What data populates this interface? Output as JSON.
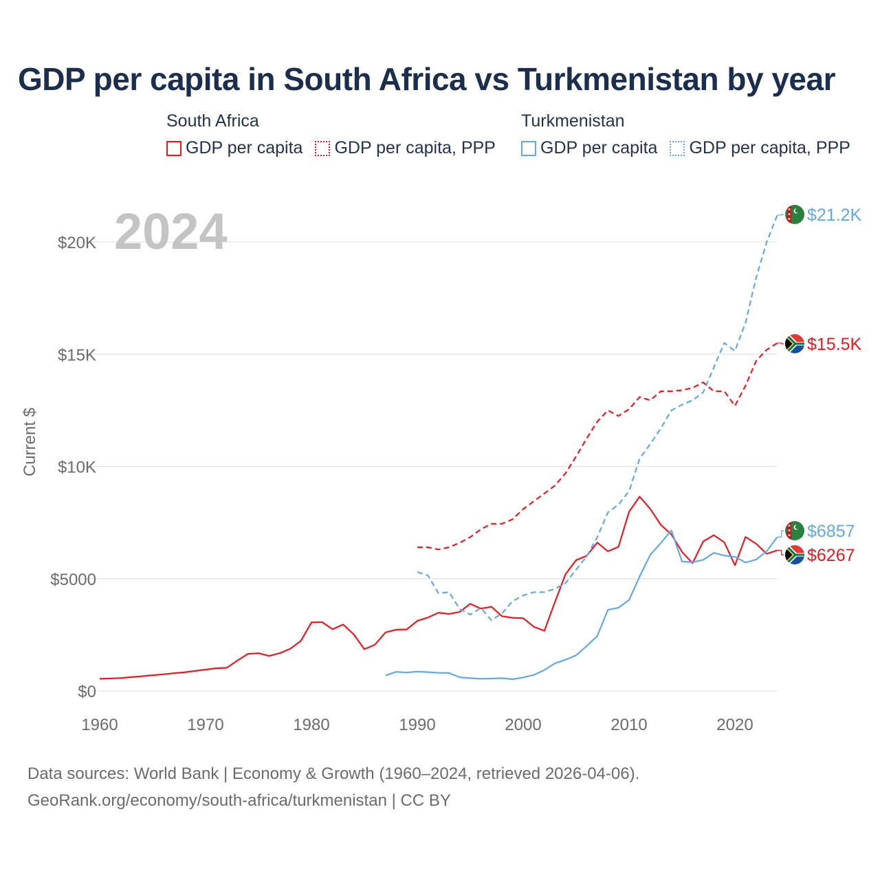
{
  "title": "GDP per capita in South Africa vs Turkmenistan by year",
  "legend": {
    "groups": [
      {
        "country": "South Africa",
        "items": [
          {
            "label": "GDP per capita",
            "style": "solid",
            "color": "#e8191f"
          },
          {
            "label": "GDP per capita, PPP",
            "style": "dotted",
            "color": "#e8191f"
          }
        ]
      },
      {
        "country": "Turkmenistan",
        "items": [
          {
            "label": "GDP per capita",
            "style": "solid",
            "color": "#62a8e5"
          },
          {
            "label": "GDP per capita, PPP",
            "style": "dotted",
            "color": "#62a8e5"
          }
        ]
      }
    ]
  },
  "footer": {
    "line1": "Data sources: World Bank | Economy & Growth (1960–2024, retrieved 2026-04-06).",
    "line2": "GeoRank.org/economy/south-africa/turkmenistan | CC BY"
  },
  "chart_data": {
    "type": "line",
    "title": "GDP per capita in South Africa vs Turkmenistan by year",
    "year_label": "2024",
    "xlabel": "",
    "ylabel": "Current $",
    "xlim": [
      1960,
      2024
    ],
    "ylim": [
      0,
      21500
    ],
    "x_ticks": [
      1960,
      1970,
      1980,
      1990,
      2000,
      2010,
      2020
    ],
    "x_tick_labels": [
      "1960",
      "1970",
      "1980",
      "1990",
      "2000",
      "2010",
      "2020"
    ],
    "y_ticks": [
      0,
      5000,
      10000,
      15000,
      20000
    ],
    "y_tick_labels": [
      "$0",
      "$5000",
      "$10K",
      "$15K",
      "$20K"
    ],
    "grid": true,
    "series": [
      {
        "name": "South Africa GDP per capita",
        "color": "#e8191f",
        "dash": "solid",
        "end_label": "$6267",
        "flag": "south-africa",
        "x": [
          1960,
          1961,
          1962,
          1963,
          1964,
          1965,
          1966,
          1967,
          1968,
          1969,
          1970,
          1971,
          1972,
          1973,
          1974,
          1975,
          1976,
          1977,
          1978,
          1979,
          1980,
          1981,
          1982,
          1983,
          1984,
          1985,
          1986,
          1987,
          1988,
          1989,
          1990,
          1991,
          1992,
          1993,
          1994,
          1995,
          1996,
          1997,
          1998,
          1999,
          2000,
          2001,
          2002,
          2003,
          2004,
          2005,
          2006,
          2007,
          2008,
          2009,
          2010,
          2011,
          2012,
          2013,
          2014,
          2015,
          2016,
          2017,
          2018,
          2019,
          2020,
          2021,
          2022,
          2023,
          2024
        ],
        "y": [
          540,
          555,
          575,
          615,
          655,
          700,
          740,
          790,
          830,
          890,
          950,
          1010,
          1030,
          1350,
          1650,
          1680,
          1560,
          1680,
          1880,
          2230,
          3050,
          3070,
          2750,
          2960,
          2520,
          1860,
          2060,
          2610,
          2730,
          2740,
          3120,
          3270,
          3490,
          3430,
          3520,
          3880,
          3670,
          3750,
          3330,
          3260,
          3240,
          2860,
          2680,
          3960,
          5200,
          5830,
          6020,
          6610,
          6220,
          6420,
          7980,
          8660,
          8110,
          7400,
          6970,
          6200,
          5690,
          6660,
          6940,
          6620,
          5600,
          6860,
          6560,
          6110,
          6267
        ]
      },
      {
        "name": "South Africa GDP per capita, PPP",
        "color": "#e8191f",
        "dash": "dashed",
        "end_label": "$15.5K",
        "flag": "south-africa",
        "x": [
          1990,
          1991,
          1992,
          1993,
          1994,
          1995,
          1996,
          1997,
          1998,
          1999,
          2000,
          2001,
          2002,
          2003,
          2004,
          2005,
          2006,
          2007,
          2008,
          2009,
          2010,
          2011,
          2012,
          2013,
          2014,
          2015,
          2016,
          2017,
          2018,
          2019,
          2020,
          2021,
          2022,
          2023,
          2024
        ],
        "y": [
          6400,
          6400,
          6300,
          6400,
          6600,
          6850,
          7200,
          7450,
          7450,
          7650,
          8100,
          8450,
          8800,
          9150,
          9700,
          10450,
          11250,
          12000,
          12500,
          12250,
          12550,
          13100,
          12950,
          13350,
          13350,
          13400,
          13500,
          13750,
          13350,
          13350,
          12700,
          13600,
          14700,
          15200,
          15500
        ]
      },
      {
        "name": "Turkmenistan GDP per capita",
        "color": "#62a8e5",
        "dash": "solid",
        "end_label": "$6857",
        "flag": "turkmenistan",
        "x": [
          1987,
          1988,
          1989,
          1990,
          1991,
          1992,
          1993,
          1994,
          1995,
          1996,
          1997,
          1998,
          1999,
          2000,
          2001,
          2002,
          2003,
          2004,
          2005,
          2006,
          2007,
          2008,
          2009,
          2010,
          2011,
          2012,
          2013,
          2014,
          2015,
          2016,
          2017,
          2018,
          2019,
          2020,
          2021,
          2022,
          2023,
          2024
        ],
        "y": [
          690,
          850,
          820,
          860,
          840,
          810,
          800,
          610,
          570,
          540,
          550,
          570,
          520,
          600,
          710,
          930,
          1230,
          1390,
          1590,
          2000,
          2450,
          3610,
          3710,
          4050,
          5100,
          6060,
          6590,
          7150,
          5770,
          5730,
          5840,
          6150,
          6030,
          5980,
          5720,
          5850,
          6230,
          6857
        ]
      },
      {
        "name": "Turkmenistan GDP per capita, PPP",
        "color": "#62a8e5",
        "dash": "dashed",
        "end_label": "$21.2K",
        "flag": "turkmenistan",
        "x": [
          1990,
          1991,
          1992,
          1993,
          1994,
          1995,
          1996,
          1997,
          1998,
          1999,
          2000,
          2001,
          2002,
          2003,
          2004,
          2005,
          2006,
          2007,
          2008,
          2009,
          2010,
          2011,
          2012,
          2013,
          2014,
          2015,
          2016,
          2017,
          2018,
          2019,
          2020,
          2021,
          2022,
          2023,
          2024
        ],
        "y": [
          5300,
          5150,
          4350,
          4400,
          3650,
          3400,
          3700,
          3150,
          3450,
          4000,
          4250,
          4400,
          4400,
          4550,
          4800,
          5400,
          6000,
          6850,
          7950,
          8300,
          8900,
          10350,
          11000,
          11700,
          12500,
          12750,
          12950,
          13300,
          14400,
          15500,
          15150,
          16400,
          18400,
          20000,
          21200
        ]
      }
    ]
  }
}
